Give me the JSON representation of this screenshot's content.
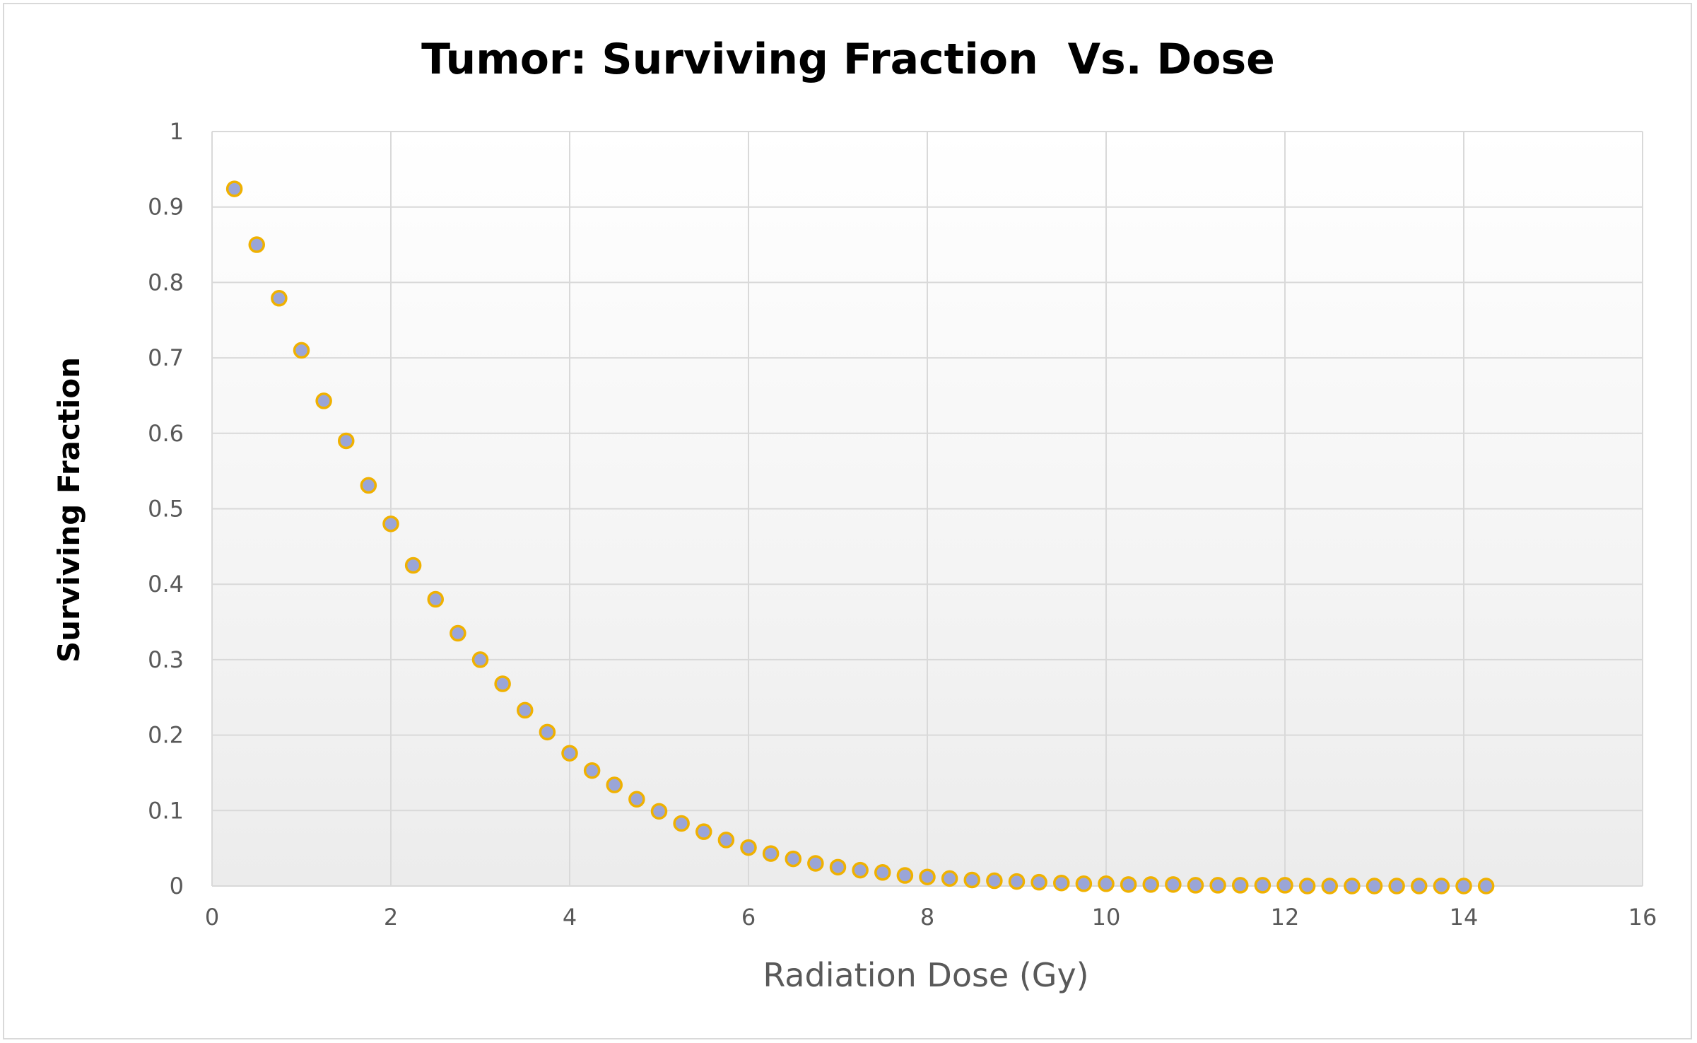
{
  "chart_data": {
    "type": "scatter",
    "title": "Tumor: Surviving Fraction  Vs. Dose",
    "xlabel": "Radiation Dose (Gy)",
    "ylabel": "Surviving Fraction",
    "xlim": [
      0,
      16
    ],
    "ylim": [
      0,
      1
    ],
    "x_ticks": [
      0,
      2,
      4,
      6,
      8,
      10,
      12,
      14,
      16
    ],
    "y_ticks": [
      0,
      0.1,
      0.2,
      0.3,
      0.4,
      0.5,
      0.6,
      0.7,
      0.8,
      0.9,
      1
    ],
    "x_tick_labels": [
      "0",
      "2",
      "4",
      "6",
      "8",
      "10",
      "12",
      "14",
      "16"
    ],
    "y_tick_labels": [
      "0",
      "0.1",
      "0.2",
      "0.3",
      "0.4",
      "0.5",
      "0.6",
      "0.7",
      "0.8",
      "0.9",
      "1"
    ],
    "grid": true,
    "legend": "none",
    "marker_fill": "#9aa5d8",
    "marker_edge": "#f0b100",
    "plot_background_gradient": [
      "#ffffff",
      "#ececec"
    ],
    "series": [
      {
        "x": [
          0.25,
          0.5,
          0.75,
          1.0,
          1.25,
          1.5,
          1.75,
          2.0,
          2.25,
          2.5,
          2.75,
          3.0,
          3.25,
          3.5,
          3.75,
          4.0,
          4.25,
          4.5,
          4.75,
          5.0,
          5.25,
          5.5,
          5.75,
          6.0,
          6.25,
          6.5,
          6.75,
          7.0,
          7.25,
          7.5,
          7.75,
          8.0,
          8.25,
          8.5,
          8.75,
          9.0,
          9.25,
          9.5,
          9.75,
          10.0,
          10.25,
          10.5,
          10.75,
          11.0,
          11.25,
          11.5,
          11.75,
          12.0,
          12.25,
          12.5,
          12.75,
          13.0,
          13.25,
          13.5,
          13.75,
          14.0,
          14.25
        ],
        "y": [
          0.924,
          0.85,
          0.779,
          0.71,
          0.643,
          0.59,
          0.531,
          0.48,
          0.425,
          0.38,
          0.335,
          0.3,
          0.268,
          0.233,
          0.204,
          0.176,
          0.153,
          0.134,
          0.115,
          0.099,
          0.083,
          0.072,
          0.061,
          0.051,
          0.043,
          0.036,
          0.03,
          0.025,
          0.021,
          0.018,
          0.014,
          0.012,
          0.01,
          0.008,
          0.007,
          0.006,
          0.005,
          0.004,
          0.003,
          0.003,
          0.002,
          0.002,
          0.002,
          0.001,
          0.001,
          0.001,
          0.001,
          0.001,
          0.0,
          0.0,
          0.0,
          0.0,
          0.0,
          0.0,
          0.0,
          0.0,
          0.0
        ]
      }
    ]
  }
}
